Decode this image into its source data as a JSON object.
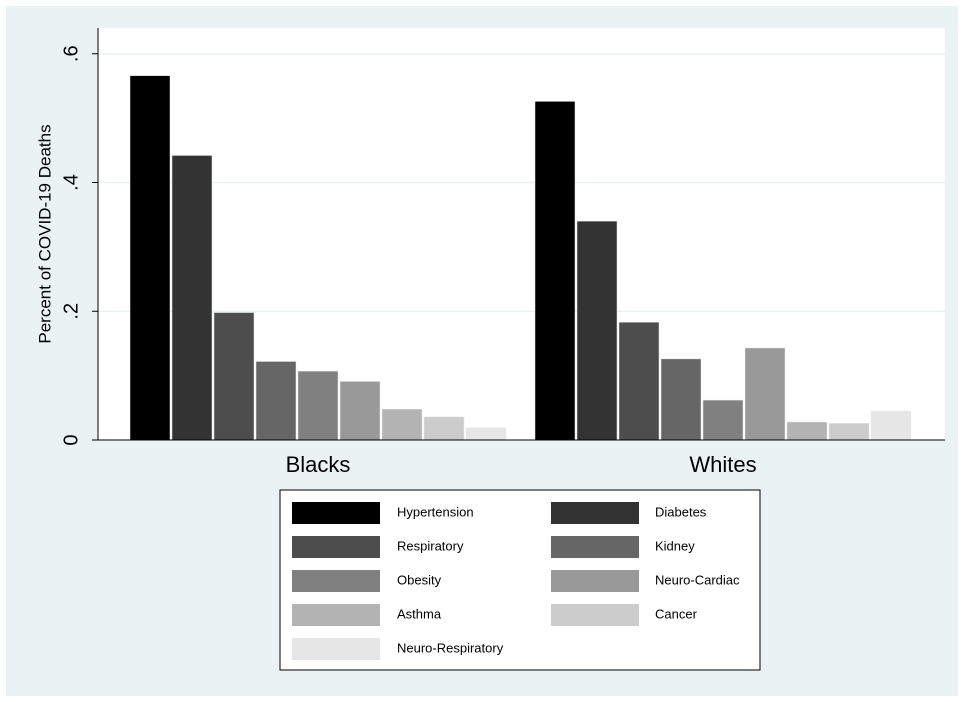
{
  "chart_data": {
    "type": "bar",
    "ylabel": "Percent of COVID-19 Deaths",
    "categories": [
      "Blacks",
      "Whites"
    ],
    "series": [
      {
        "name": "Hypertension",
        "color": "#000000",
        "values": [
          0.566,
          0.526
        ]
      },
      {
        "name": "Diabetes",
        "color": "#333333",
        "values": [
          0.442,
          0.34
        ]
      },
      {
        "name": "Respiratory",
        "color": "#4d4d4d",
        "values": [
          0.198,
          0.183
        ]
      },
      {
        "name": "Kidney",
        "color": "#666666",
        "values": [
          0.122,
          0.126
        ]
      },
      {
        "name": "Obesity",
        "color": "#808080",
        "values": [
          0.107,
          0.062
        ]
      },
      {
        "name": "Neuro-Cardiac",
        "color": "#999999",
        "values": [
          0.091,
          0.143
        ]
      },
      {
        "name": "Asthma",
        "color": "#b3b3b3",
        "values": [
          0.048,
          0.028
        ]
      },
      {
        "name": "Cancer",
        "color": "#cccccc",
        "values": [
          0.036,
          0.026
        ]
      },
      {
        "name": "Neuro-Respiratory",
        "color": "#e6e6e6",
        "values": [
          0.019,
          0.045
        ]
      }
    ],
    "ylim": [
      0,
      0.64
    ],
    "yticks": [
      0,
      {
        "value": 0.2,
        "label": ".2"
      },
      {
        "value": 0.4,
        "label": ".4"
      },
      {
        "value": 0.6,
        "label": ".6"
      }
    ],
    "grid": true
  }
}
